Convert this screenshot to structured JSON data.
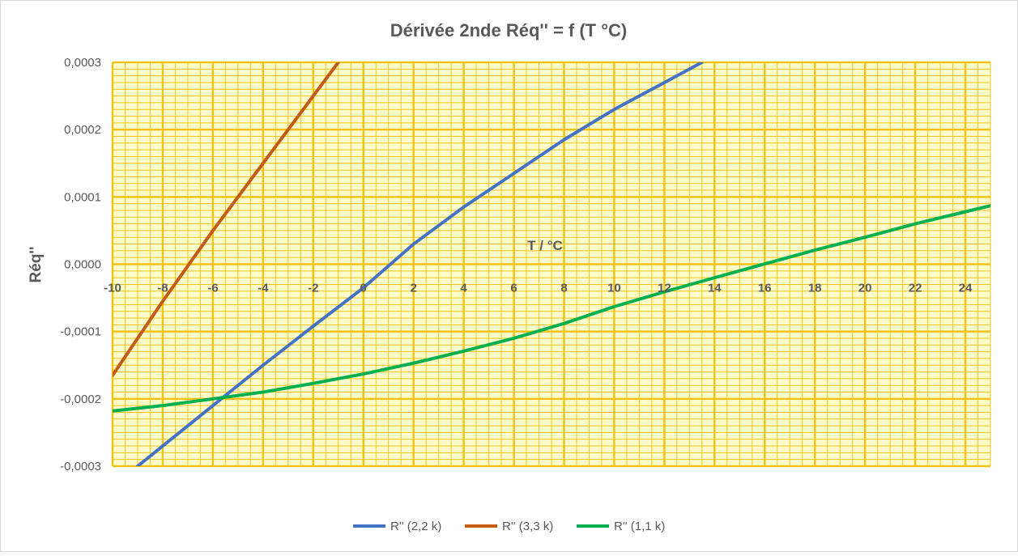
{
  "chart_data": {
    "type": "line",
    "title": "Dérivée 2nde Réq'' = f (T °C)",
    "xlabel": "T / °C",
    "ylabel": "Réq''",
    "xlim": [
      -10,
      25
    ],
    "ylim": [
      -0.0003,
      0.0003
    ],
    "x_ticks": [
      -10,
      -8,
      -6,
      -4,
      -2,
      0,
      2,
      4,
      6,
      8,
      10,
      12,
      14,
      16,
      18,
      20,
      22,
      24
    ],
    "x_tick_labels": [
      "-10",
      "-8",
      "-6",
      "-4",
      "-2",
      "0",
      "2",
      "4",
      "6",
      "8",
      "10",
      "12",
      "14",
      "16",
      "18",
      "20",
      "22",
      "24"
    ],
    "y_ticks": [
      -0.0003,
      -0.0002,
      -0.0001,
      0,
      0.0001,
      0.0002,
      0.0003
    ],
    "y_tick_labels": [
      "-0,0003",
      "-0,0002",
      "-0,0001",
      "0,0000",
      "0,0001",
      "0,0002",
      "0,0003"
    ],
    "grid": true,
    "grid_color": "#F2C21B",
    "plot_background": "#FFFFCC",
    "legend_position": "bottom",
    "series": [
      {
        "name": "R'' (2,2 k)",
        "color": "#4472C4",
        "x": [
          -9,
          -8,
          -6,
          -4,
          -2,
          0,
          2,
          4,
          6,
          8,
          10,
          12,
          13.5
        ],
        "y": [
          -0.0003,
          -0.00027,
          -0.00021,
          -0.00015,
          -9.2e-05,
          -3.5e-05,
          3e-05,
          8.5e-05,
          0.000135,
          0.000185,
          0.00023,
          0.00027,
          0.0003
        ]
      },
      {
        "name": "R'' (3,3 k)",
        "color": "#C55A11",
        "x": [
          -10,
          -8,
          -6,
          -4,
          -2,
          -1
        ],
        "y": [
          -0.000165,
          -5.5e-05,
          5e-05,
          0.00015,
          0.00025,
          0.0003
        ]
      },
      {
        "name": "R'' (1,1 k)",
        "color": "#00B050",
        "x": [
          -10,
          -8,
          -6,
          -4,
          -2,
          0,
          2,
          4,
          6,
          8,
          10,
          12,
          14,
          16,
          18,
          20,
          22,
          24,
          25
        ],
        "y": [
          -0.000218,
          -0.00021,
          -0.0002,
          -0.00019,
          -0.000177,
          -0.000163,
          -0.000147,
          -0.000129,
          -0.00011,
          -8.8e-05,
          -6.3e-05,
          -4.1e-05,
          -2e-05,
          5e-07,
          2.1e-05,
          4e-05,
          6e-05,
          7.8e-05,
          8.7e-05
        ]
      }
    ]
  }
}
